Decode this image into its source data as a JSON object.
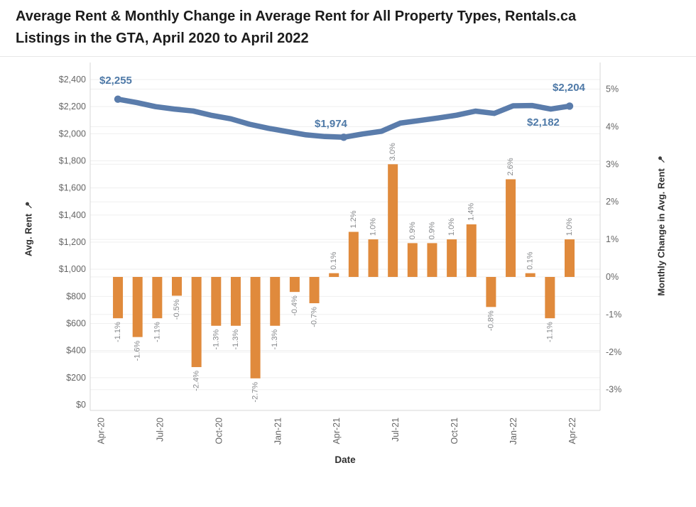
{
  "page": {
    "title_line1": "Average Rent & Monthly Change in Average Rent for All Property Types, Rentals.ca",
    "title_line2": "Listings in the GTA, April 2020 to April 2022"
  },
  "chart_data": {
    "type": "combo-line-bar",
    "title": "Average Rent & Monthly Change in Average Rent for All Property Types, Rentals.ca Listings in the GTA, April 2020 to April 2022",
    "x": [
      "Apr-20",
      "May-20",
      "Jun-20",
      "Jul-20",
      "Aug-20",
      "Sep-20",
      "Oct-20",
      "Nov-20",
      "Dec-20",
      "Jan-21",
      "Feb-21",
      "Mar-21",
      "Apr-21",
      "May-21",
      "Jun-21",
      "Jul-21",
      "Aug-21",
      "Sep-21",
      "Oct-21",
      "Nov-21",
      "Dec-21",
      "Jan-22",
      "Feb-22",
      "Mar-22",
      "Apr-22"
    ],
    "x_axis": {
      "title": "Date",
      "tick_every": 3,
      "tick_labels": [
        "Apr-20",
        "Jul-20",
        "Oct-20",
        "Jan-21",
        "Apr-21",
        "Jul-21",
        "Oct-21",
        "Jan-22",
        "Apr-22"
      ]
    },
    "left_axis": {
      "title": "Avg. Rent",
      "range": [
        0,
        2400
      ],
      "tick_step": 200,
      "ticks": [
        "$0",
        "$200",
        "$400",
        "$600",
        "$800",
        "$1,000",
        "$1,200",
        "$1,400",
        "$1,600",
        "$1,800",
        "$2,000",
        "$2,200",
        "$2,400"
      ]
    },
    "right_axis": {
      "title": "Monthly Change in Avg. Rent",
      "ticks": [
        "5%",
        "4%",
        "3%",
        "2%",
        "1%",
        "0%",
        "-1%",
        "-2%",
        "-3%"
      ]
    },
    "series": [
      {
        "name": "Avg. Rent",
        "type": "line",
        "axis": "left",
        "color": "#5a7cab",
        "marked_months": [
          "Apr-20",
          "Apr-21",
          "Apr-22"
        ],
        "values": [
          2255,
          2230,
          2200,
          2182,
          2168,
          2135,
          2110,
          2070,
          2040,
          2016,
          1992,
          1979,
          1974,
          1998,
          2018,
          2078,
          2097,
          2116,
          2137,
          2167,
          2150,
          2206,
          2208,
          2182,
          2204
        ]
      },
      {
        "name": "Monthly Change in Avg. Rent",
        "type": "bar",
        "axis": "right",
        "color": "#e08a3c",
        "values": [
          null,
          -1.1,
          -1.6,
          -1.1,
          -0.5,
          -2.4,
          -1.3,
          -1.3,
          -2.7,
          -1.3,
          -0.4,
          -0.7,
          0.1,
          1.2,
          1.0,
          3.0,
          0.9,
          0.9,
          1.0,
          1.4,
          -0.8,
          2.6,
          0.1,
          -1.1,
          1.0
        ],
        "labels": [
          null,
          "-1.1%",
          "-1.6%",
          "-1.1%",
          "-0.5%",
          "-2.4%",
          "-1.3%",
          "-1.3%",
          "-2.7%",
          "-1.3%",
          "-0.4%",
          "-0.7%",
          "0.1%",
          "1.2%",
          "1.0%",
          "3.0%",
          "0.9%",
          "0.9%",
          "1.0%",
          "1.4%",
          "-0.8%",
          "2.6%",
          "0.1%",
          "-1.1%",
          "1.0%"
        ]
      }
    ],
    "annotations": [
      {
        "text": "$2,255",
        "month": "Apr-20"
      },
      {
        "text": "$1,974",
        "month": "Apr-21"
      },
      {
        "text": "$2,182",
        "month": "Mar-22"
      },
      {
        "text": "$2,204",
        "month": "Apr-22"
      }
    ],
    "colors": {
      "line": "#5a7cab",
      "bar": "#e08a3c",
      "annotation": "#4e79a7",
      "tick_label": "#666666",
      "bar_label": "#87898c",
      "grid": "#efefef",
      "axis_border": "#d7d7d7"
    },
    "legend": "none",
    "grid": "on"
  }
}
